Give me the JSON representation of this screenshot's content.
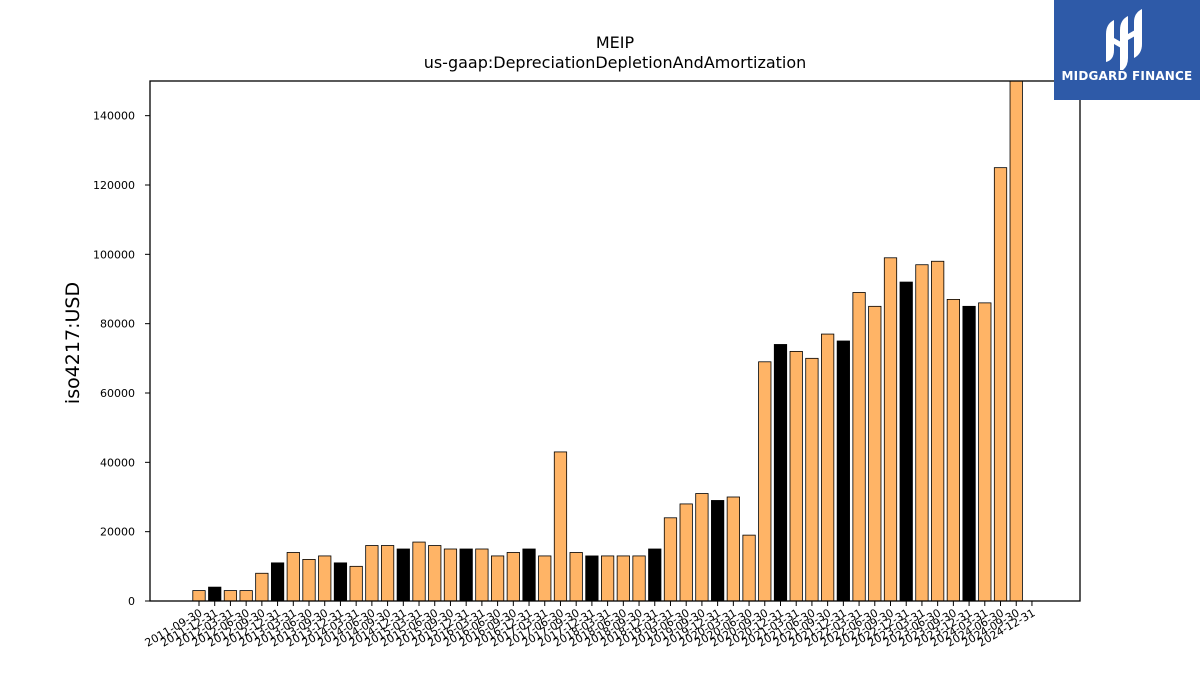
{
  "chart_data": {
    "type": "bar",
    "title": "MEIP",
    "subtitle": "us-gaap:DepreciationDepletionAndAmortization",
    "ylabel": "iso4217:USD",
    "xlabel": "",
    "ylim": [
      0,
      150000
    ],
    "yticks": [
      0,
      20000,
      40000,
      60000,
      80000,
      100000,
      120000,
      140000
    ],
    "ytick_labels": [
      "0",
      "20000",
      "40000",
      "60000",
      "80000",
      "100000",
      "120000",
      "140000"
    ],
    "categories": [
      "2011-09-30",
      "2011-12-31",
      "2012-03-31",
      "2012-06-30",
      "2012-09-30",
      "2012-12-31",
      "2013-03-31",
      "2013-06-30",
      "2013-09-30",
      "2013-12-31",
      "2014-03-31",
      "2014-06-30",
      "2014-09-30",
      "2014-12-31",
      "2015-03-31",
      "2015-06-30",
      "2015-09-30",
      "2015-12-31",
      "2016-03-31",
      "2016-06-30",
      "2016-09-30",
      "2016-12-31",
      "2017-03-31",
      "2017-06-30",
      "2017-09-30",
      "2017-12-31",
      "2018-03-31",
      "2018-06-30",
      "2018-09-30",
      "2018-12-31",
      "2019-03-31",
      "2019-06-30",
      "2019-09-30",
      "2019-12-31",
      "2020-03-31",
      "2020-06-30",
      "2020-09-30",
      "2020-12-31",
      "2021-03-31",
      "2021-06-30",
      "2021-09-30",
      "2021-12-31",
      "2022-03-31",
      "2022-06-30",
      "2022-09-30",
      "2022-12-31",
      "2023-03-31",
      "2023-06-30",
      "2023-09-30",
      "2023-12-31",
      "2024-03-31",
      "2024-06-30",
      "2024-09-30",
      "2024-12-31"
    ],
    "values": [
      3000,
      4000,
      3000,
      3000,
      8000,
      11000,
      14000,
      12000,
      13000,
      11000,
      10000,
      16000,
      16000,
      15000,
      17000,
      16000,
      15000,
      15000,
      15000,
      13000,
      14000,
      15000,
      13000,
      43000,
      14000,
      13000,
      13000,
      13000,
      13000,
      15000,
      24000,
      28000,
      31000,
      29000,
      30000,
      19000,
      69000,
      74000,
      72000,
      70000,
      77000,
      75000,
      89000,
      85000,
      99000,
      92000,
      97000,
      98000,
      87000,
      85000,
      86000,
      125000,
      150000,
      null
    ],
    "period": [
      "Q",
      "FY",
      "Q",
      "Q",
      "Q",
      "FY",
      "Q",
      "Q",
      "Q",
      "FY",
      "Q",
      "Q",
      "Q",
      "FY",
      "Q",
      "Q",
      "Q",
      "FY",
      "Q",
      "Q",
      "Q",
      "FY",
      "Q",
      "Q",
      "Q",
      "FY",
      "Q",
      "Q",
      "Q",
      "FY",
      "Q",
      "Q",
      "Q",
      "FY",
      "Q",
      "Q",
      "Q",
      "FY",
      "Q",
      "Q",
      "Q",
      "FY",
      "Q",
      "Q",
      "Q",
      "FY",
      "Q",
      "Q",
      "Q",
      "FY",
      "Q",
      "Q",
      "Q",
      "FY"
    ],
    "colors": {
      "quarterly": "#ffb466",
      "annual": "#000000",
      "edge": "#000000"
    },
    "grid": false,
    "legend": "none"
  },
  "logo": {
    "text": "MIDGARD FINANCE",
    "icon": "midgard-logo-icon",
    "background": "#2e5aa8"
  }
}
